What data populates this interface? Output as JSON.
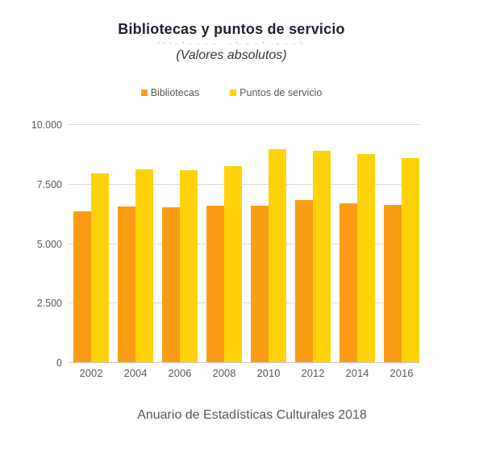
{
  "header": {
    "title": "Bibliotecas y puntos de servicio",
    "subtitle": "(Valores absolutos)",
    "artifact": "(Valores absolutos)"
  },
  "footer": {
    "caption": "Anuario de Estadísticas Culturales 2018"
  },
  "colors": {
    "bibliotecas": "#FA9D15",
    "puntos_de_servicio": "#FFD20A",
    "axis_text": "#58595b",
    "gridline": "#d8d9da",
    "title_text": "#1e2230",
    "background": "#ffffff"
  },
  "chart_data": {
    "type": "bar",
    "title": "Bibliotecas y puntos de servicio",
    "subtitle": "(Valores absolutos)",
    "source": "Anuario de Estadísticas Culturales 2018",
    "categories": [
      "2002",
      "2004",
      "2006",
      "2008",
      "2010",
      "2012",
      "2014",
      "2016"
    ],
    "series": [
      {
        "name": "Bibliotecas",
        "color": "#FA9D15",
        "values": [
          6350,
          6580,
          6520,
          6600,
          6610,
          6830,
          6700,
          6620
        ]
      },
      {
        "name": "Puntos de servicio",
        "color": "#FFD20A",
        "values": [
          7950,
          8130,
          8100,
          8280,
          8990,
          8910,
          8760,
          8590
        ]
      }
    ],
    "ylim": [
      0,
      10000
    ],
    "yticks": [
      {
        "value": 0,
        "label": "0"
      },
      {
        "value": 2500,
        "label": "2.500"
      },
      {
        "value": 5000,
        "label": "5.000"
      },
      {
        "value": 7500,
        "label": "7.500"
      },
      {
        "value": 10000,
        "label": "10.000"
      }
    ],
    "grid": true,
    "legend_position": "top",
    "xlabel": "",
    "ylabel": ""
  }
}
